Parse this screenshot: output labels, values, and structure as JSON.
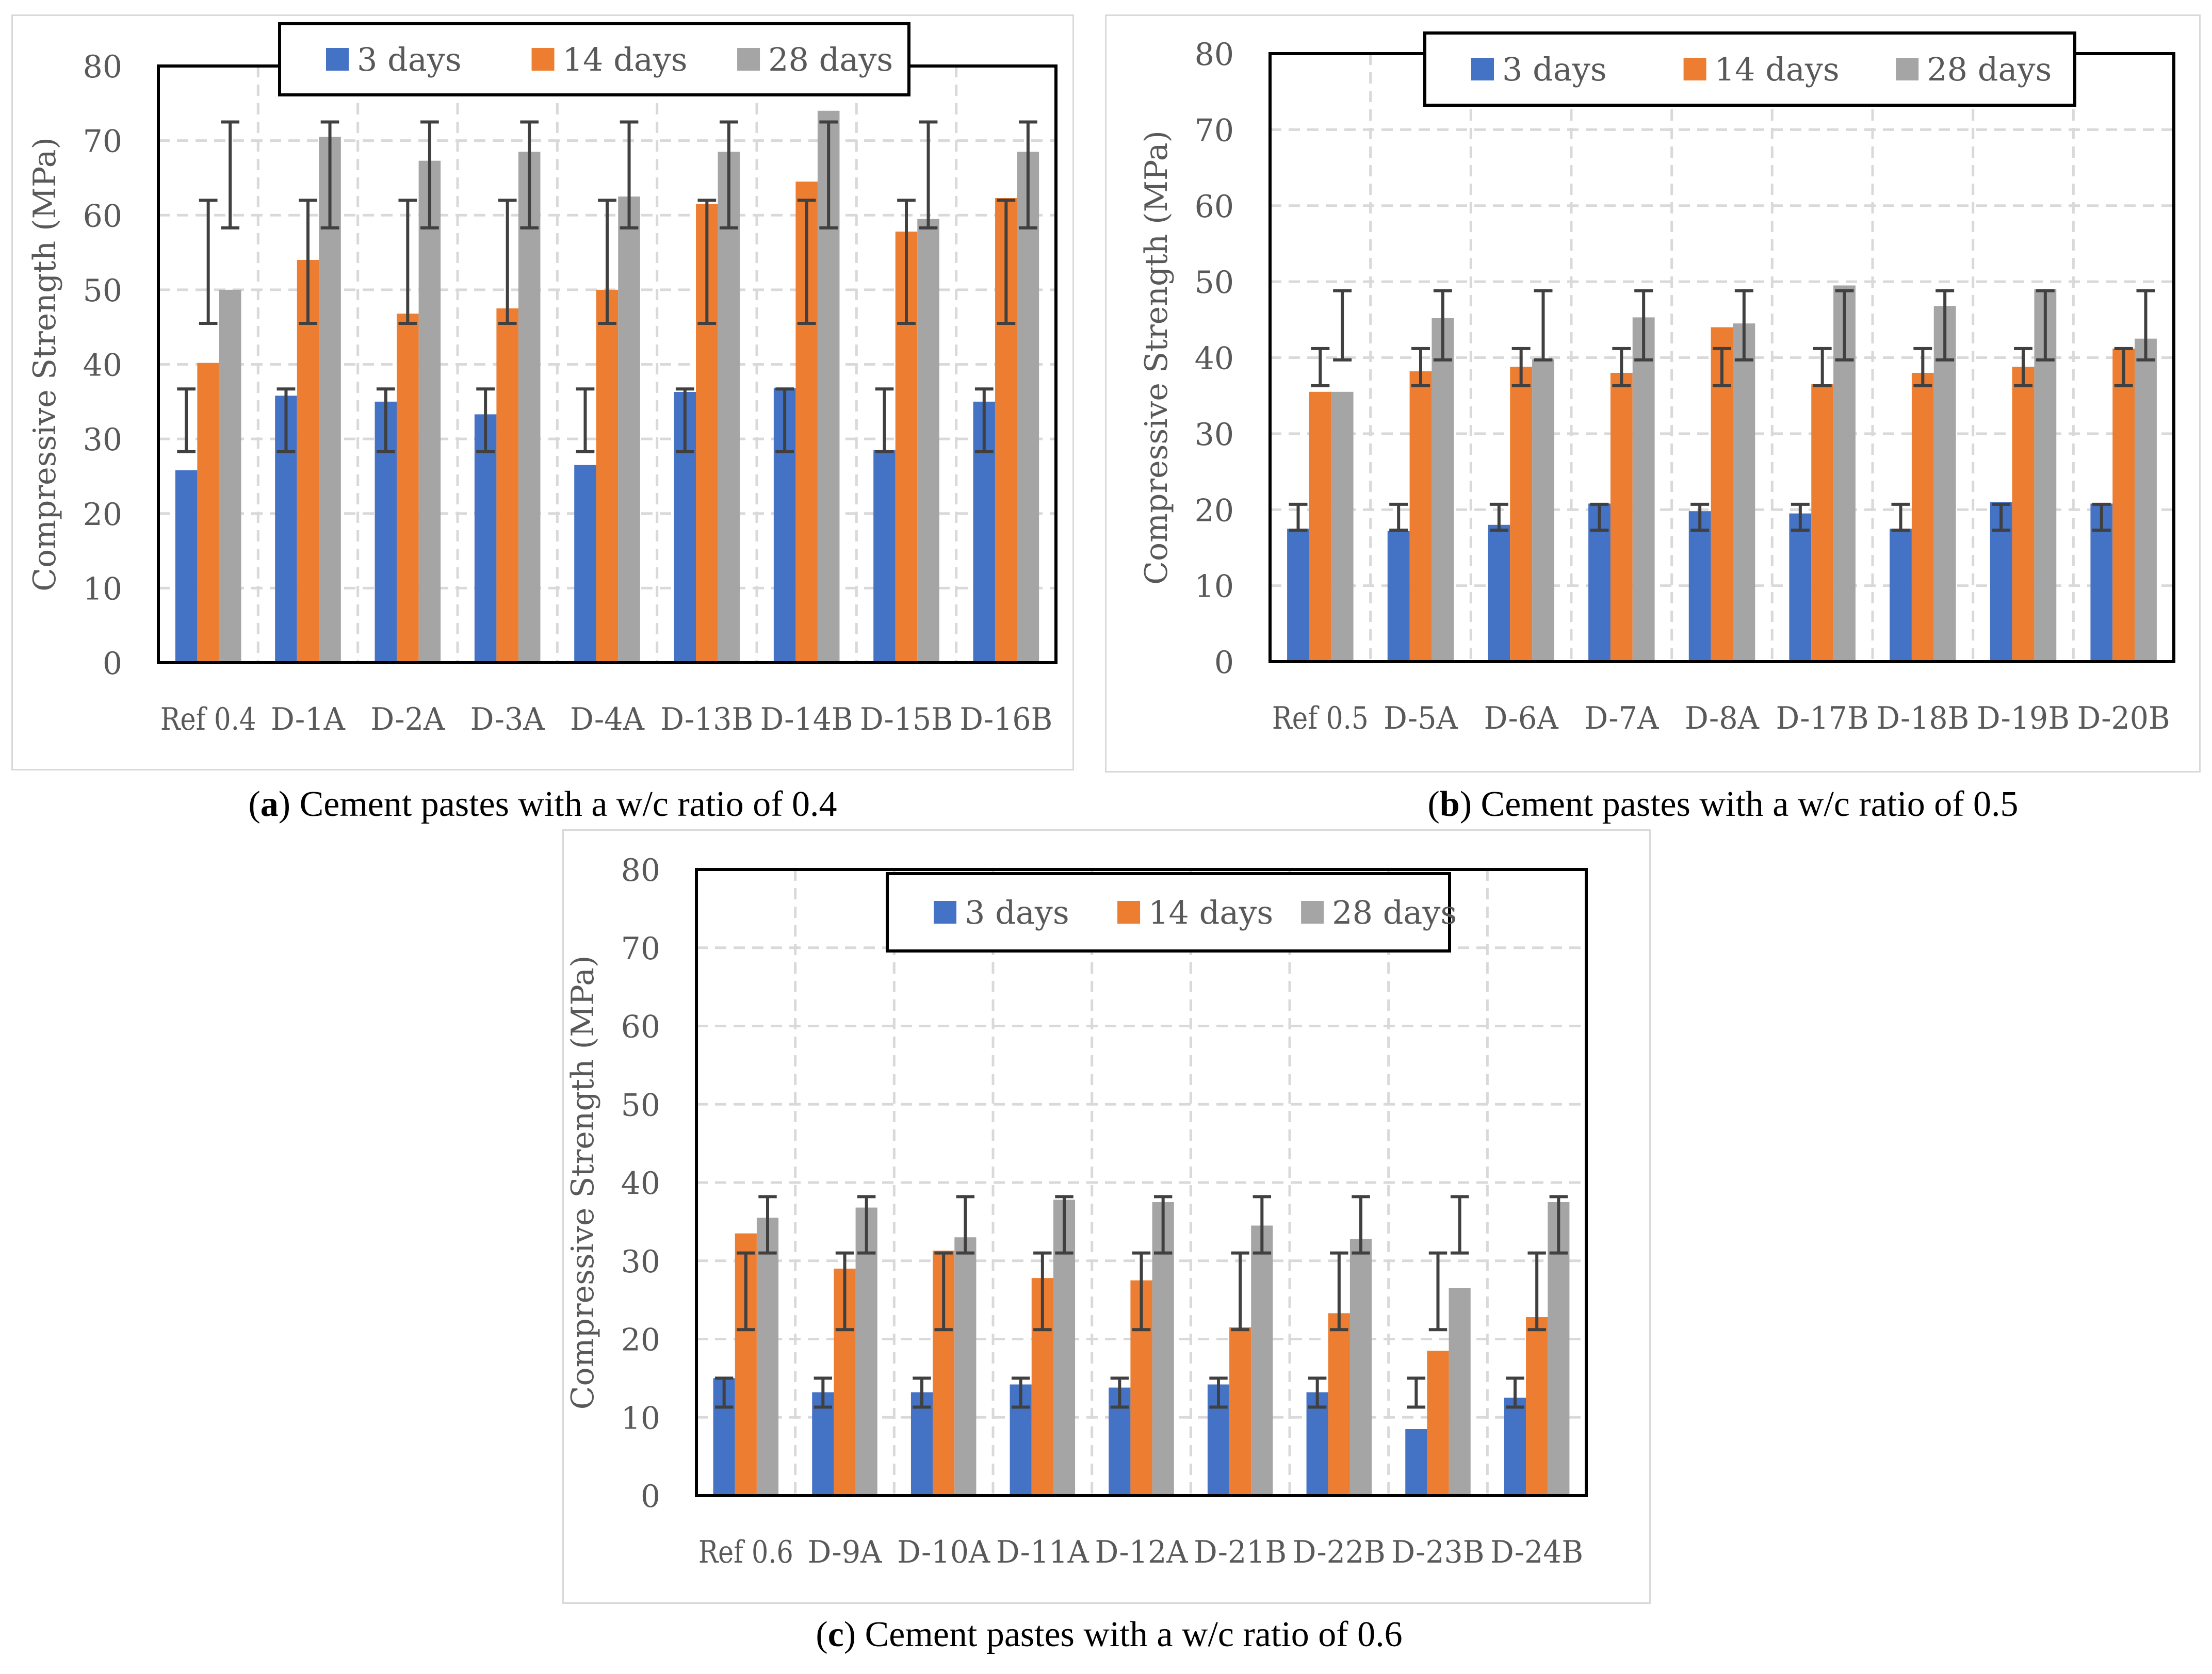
{
  "chart_data": [
    {
      "type": "bar",
      "panel": "a",
      "caption_letter": "a",
      "caption_text": "Cement pastes with a w/c ratio of 0.4",
      "ylabel": "Compressive Strength (MPa)",
      "xlabel": "",
      "ylim": [
        0,
        80
      ],
      "yticks": [
        0,
        10,
        20,
        30,
        40,
        50,
        60,
        70,
        80
      ],
      "grid": true,
      "legend": "top-center",
      "categories": [
        "Ref 0.4",
        "D-1A",
        "D-2A",
        "D-3A",
        "D-4A",
        "D-13B",
        "D-14B",
        "D-15B",
        "D-16B"
      ],
      "series": [
        {
          "name": "3 days",
          "color": "#4472C4",
          "values": [
            25.8,
            35.8,
            35.0,
            33.3,
            26.5,
            36.3,
            36.8,
            28.5,
            35.0
          ],
          "error_low": [
            28.3,
            28.3,
            28.3,
            28.3,
            28.3,
            28.3,
            28.3,
            28.3,
            28.3
          ],
          "error_high": [
            36.7,
            36.7,
            36.7,
            36.7,
            36.7,
            36.7,
            36.7,
            36.7,
            36.7
          ]
        },
        {
          "name": "14 days",
          "color": "#ED7D31",
          "values": [
            40.2,
            54.0,
            46.8,
            47.5,
            50.0,
            61.5,
            64.5,
            57.8,
            62.3
          ],
          "error_low": [
            45.5,
            45.5,
            45.5,
            45.5,
            45.5,
            45.5,
            45.5,
            45.5,
            45.5
          ],
          "error_high": [
            62.0,
            62.0,
            62.0,
            62.0,
            62.0,
            62.0,
            62.0,
            62.0,
            62.0
          ]
        },
        {
          "name": "28 days",
          "color": "#A5A5A5",
          "values": [
            50.0,
            70.5,
            67.3,
            68.5,
            62.5,
            68.5,
            74.0,
            59.5,
            68.5
          ],
          "error_low": [
            58.3,
            58.3,
            58.3,
            58.3,
            58.3,
            58.3,
            58.3,
            58.3,
            58.3
          ],
          "error_high": [
            72.5,
            72.5,
            72.5,
            72.5,
            72.5,
            72.5,
            72.5,
            72.5,
            72.5
          ]
        }
      ]
    },
    {
      "type": "bar",
      "panel": "b",
      "caption_letter": "b",
      "caption_text": "Cement pastes with a w/c ratio of 0.5",
      "ylabel": "Compressive Strength (MPa)",
      "xlabel": "",
      "ylim": [
        0,
        80
      ],
      "yticks": [
        0,
        10,
        20,
        30,
        40,
        50,
        60,
        70,
        80
      ],
      "grid": true,
      "legend": "top-center",
      "categories": [
        "Ref 0.5",
        "D-5A",
        "D-6A",
        "D-7A",
        "D-8A",
        "D-17B",
        "D-18B",
        "D-19B",
        "D-20B"
      ],
      "series": [
        {
          "name": "3 days",
          "color": "#4472C4",
          "values": [
            17.5,
            17.2,
            18.0,
            20.8,
            19.8,
            19.5,
            17.5,
            21.0,
            20.8
          ],
          "error_low": [
            17.3,
            17.3,
            17.3,
            17.3,
            17.3,
            17.3,
            17.3,
            17.3,
            17.3
          ],
          "error_high": [
            20.7,
            20.7,
            20.7,
            20.7,
            20.7,
            20.7,
            20.7,
            20.7,
            20.7
          ]
        },
        {
          "name": "14 days",
          "color": "#ED7D31",
          "values": [
            35.5,
            38.2,
            38.8,
            38.0,
            44.0,
            36.5,
            38.0,
            38.8,
            41.2
          ],
          "error_low": [
            36.3,
            36.3,
            36.3,
            36.3,
            36.3,
            36.3,
            36.3,
            36.3,
            36.3
          ],
          "error_high": [
            41.2,
            41.2,
            41.2,
            41.2,
            41.2,
            41.2,
            41.2,
            41.2,
            41.2
          ]
        },
        {
          "name": "28 days",
          "color": "#A5A5A5",
          "values": [
            35.5,
            45.2,
            39.8,
            45.3,
            44.5,
            49.5,
            46.8,
            49.0,
            42.5
          ],
          "error_low": [
            39.7,
            39.7,
            39.7,
            39.7,
            39.7,
            39.7,
            39.7,
            39.7,
            39.7
          ],
          "error_high": [
            48.8,
            48.8,
            48.8,
            48.8,
            48.8,
            48.8,
            48.8,
            48.8,
            48.8
          ]
        }
      ]
    },
    {
      "type": "bar",
      "panel": "c",
      "caption_letter": "c",
      "caption_text": "Cement pastes with a w/c ratio of 0.6",
      "ylabel": "Compressive Strength (MPa)",
      "xlabel": "",
      "ylim": [
        0,
        80
      ],
      "yticks": [
        0,
        10,
        20,
        30,
        40,
        50,
        60,
        70,
        80
      ],
      "grid": true,
      "legend": "top-center",
      "categories": [
        "Ref 0.6",
        "D-9A",
        "D-10A",
        "D-11A",
        "D-12A",
        "D-21B",
        "D-22B",
        "D-23B",
        "D-24B"
      ],
      "series": [
        {
          "name": "3 days",
          "color": "#4472C4",
          "values": [
            15.0,
            13.2,
            13.2,
            14.2,
            13.8,
            14.2,
            13.2,
            8.5,
            12.5
          ],
          "error_low": [
            11.3,
            11.3,
            11.3,
            11.3,
            11.3,
            11.3,
            11.3,
            11.3,
            11.3
          ],
          "error_high": [
            15.0,
            15.0,
            15.0,
            15.0,
            15.0,
            15.0,
            15.0,
            15.0,
            15.0
          ]
        },
        {
          "name": "14 days",
          "color": "#ED7D31",
          "values": [
            33.5,
            29.0,
            31.3,
            27.8,
            27.5,
            21.5,
            23.3,
            18.5,
            22.8
          ],
          "error_low": [
            21.2,
            21.2,
            21.2,
            21.2,
            21.2,
            21.2,
            21.2,
            21.2,
            21.2
          ],
          "error_high": [
            31.0,
            31.0,
            31.0,
            31.0,
            31.0,
            31.0,
            31.0,
            31.0,
            31.0
          ]
        },
        {
          "name": "28 days",
          "color": "#A5A5A5",
          "values": [
            35.5,
            36.8,
            33.0,
            37.8,
            37.5,
            34.5,
            32.8,
            26.5,
            37.5
          ],
          "error_low": [
            31.0,
            31.0,
            31.0,
            31.0,
            31.0,
            31.0,
            31.0,
            31.0,
            31.0
          ],
          "error_high": [
            38.2,
            38.2,
            38.2,
            38.2,
            38.2,
            38.2,
            38.2,
            38.2,
            38.2
          ]
        }
      ]
    }
  ]
}
